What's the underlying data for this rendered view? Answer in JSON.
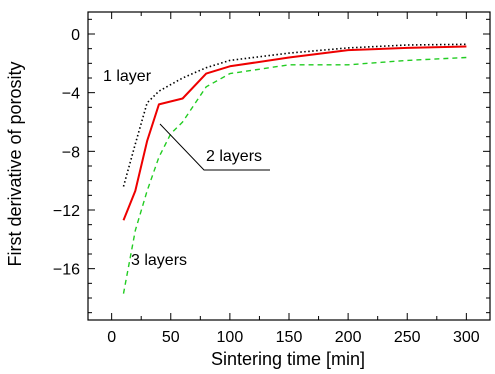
{
  "chart_data": {
    "type": "line",
    "title": "",
    "xlabel": "Sintering time [min]",
    "ylabel": "First derivative of porosity",
    "xlim": [
      -20,
      320
    ],
    "ylim": [
      -19.5,
      1.5
    ],
    "xticks": [
      0,
      50,
      100,
      150,
      200,
      250,
      300
    ],
    "yticks": [
      0,
      -4,
      -8,
      -12,
      -16
    ],
    "grid": false,
    "legend": "none",
    "series": [
      {
        "name": "1 layer",
        "color": "#000000",
        "style": "dotted",
        "x": [
          10,
          20,
          30,
          40,
          60,
          80,
          100,
          150,
          200,
          250,
          300
        ],
        "y": [
          -10.4,
          -7.5,
          -4.7,
          -3.9,
          -3.0,
          -2.3,
          -1.8,
          -1.3,
          -0.95,
          -0.75,
          -0.7
        ]
      },
      {
        "name": "2 layers",
        "color": "#ee0000",
        "style": "solid",
        "x": [
          10,
          20,
          30,
          40,
          60,
          80,
          100,
          150,
          200,
          250,
          300
        ],
        "y": [
          -12.7,
          -10.7,
          -7.3,
          -4.8,
          -4.4,
          -2.7,
          -2.2,
          -1.6,
          -1.1,
          -0.95,
          -0.85
        ]
      },
      {
        "name": "3 layers",
        "color": "#22cc22",
        "style": "dashed",
        "x": [
          10,
          20,
          30,
          40,
          50,
          60,
          80,
          100,
          150,
          200,
          250,
          300
        ],
        "y": [
          -17.7,
          -13.4,
          -10.7,
          -8.4,
          -6.8,
          -6.0,
          -3.6,
          -2.7,
          -2.1,
          -2.1,
          -1.8,
          -1.6
        ]
      }
    ],
    "annotations": [
      {
        "text": "1 layer",
        "target_series": "1 layer"
      },
      {
        "text": "2 layers",
        "target_series": "2 layers"
      },
      {
        "text": "3 layers",
        "target_series": "3 layers"
      }
    ]
  }
}
